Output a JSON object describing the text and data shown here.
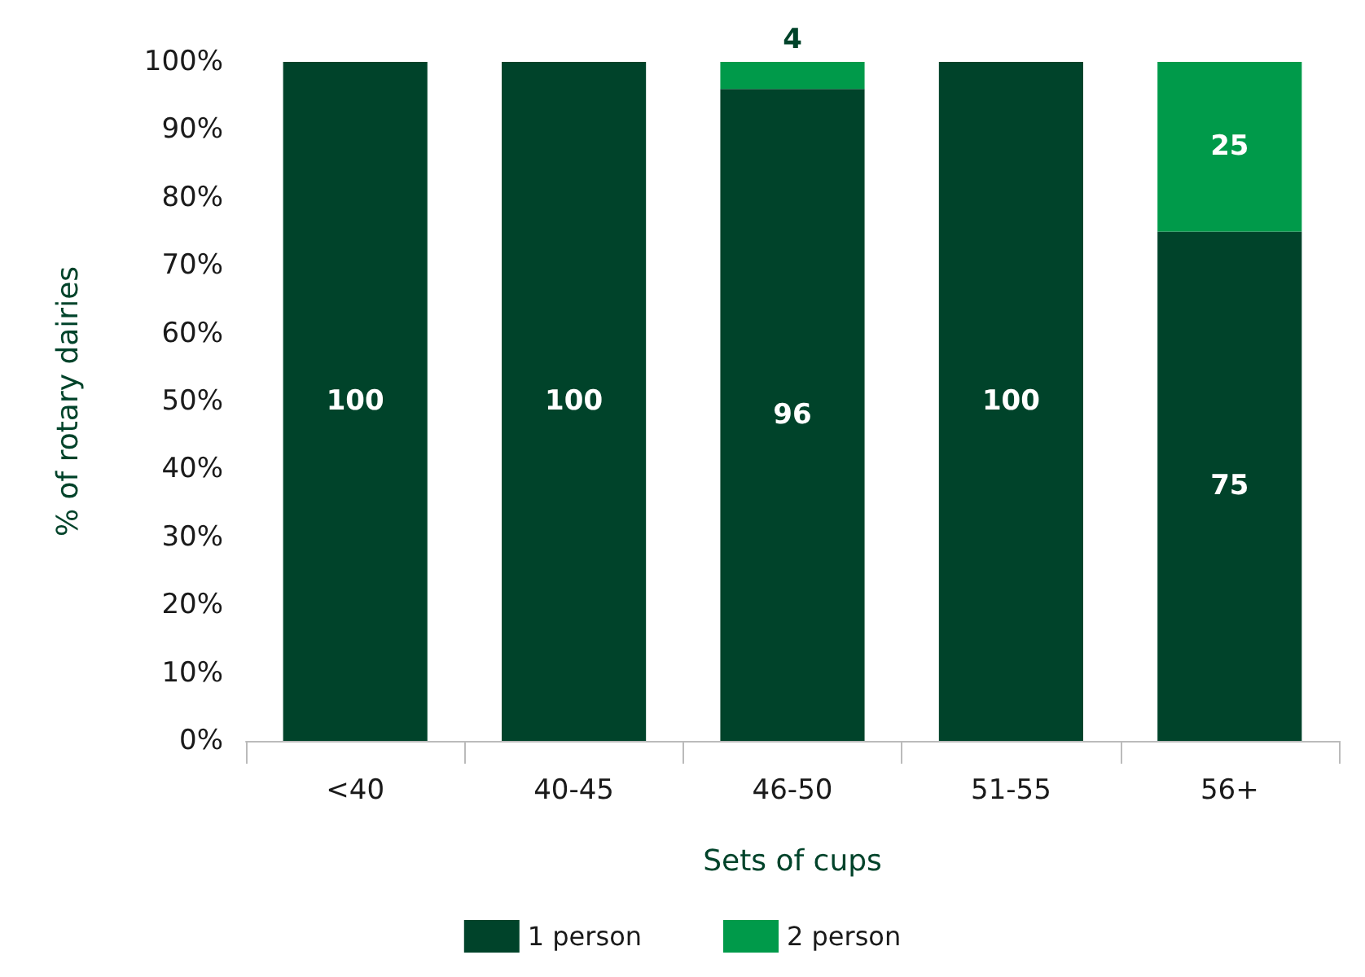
{
  "chart_data": {
    "type": "bar",
    "stacked": true,
    "xlabel": "Sets of cups",
    "ylabel": "% of rotary dairies",
    "categories": [
      "<40",
      "40-45",
      "46-50",
      "51-55",
      "56+"
    ],
    "series": [
      {
        "name": "1 person",
        "color": "#00432a",
        "values": [
          100,
          100,
          96,
          100,
          75
        ],
        "value_labels": [
          "100",
          "100",
          "96",
          "100",
          "75"
        ]
      },
      {
        "name": "2 person",
        "color": "#009a4a",
        "values": [
          0,
          0,
          4,
          0,
          25
        ],
        "value_labels": [
          null,
          null,
          "4",
          null,
          "25"
        ]
      }
    ],
    "ylim": [
      0,
      100
    ],
    "yticks": [
      {
        "value": 0,
        "label": "0%"
      },
      {
        "value": 10,
        "label": "10%"
      },
      {
        "value": 20,
        "label": "20%"
      },
      {
        "value": 30,
        "label": "30%"
      },
      {
        "value": 40,
        "label": "40%"
      },
      {
        "value": 50,
        "label": "50%"
      },
      {
        "value": 60,
        "label": "60%"
      },
      {
        "value": 70,
        "label": "70%"
      },
      {
        "value": 80,
        "label": "80%"
      },
      {
        "value": 90,
        "label": "90%"
      },
      {
        "value": 100,
        "label": "100%"
      }
    ],
    "grid": false,
    "legend": "bottom"
  }
}
